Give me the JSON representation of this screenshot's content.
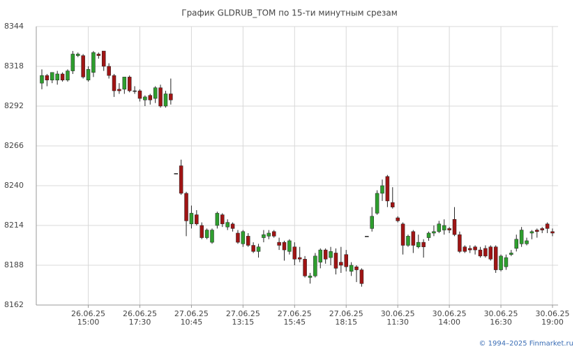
{
  "chart_data": {
    "type": "candlestick",
    "title": "График GLDRUB_TOM по 15-ти минутным срезам",
    "footer": "© 1994–2025 Finmarket.ru",
    "categories": [
      null,
      null,
      null,
      null,
      null,
      null,
      null,
      null,
      null,
      [
        "26.06.25",
        "15:00"
      ],
      null,
      null,
      null,
      null,
      null,
      null,
      null,
      null,
      null,
      [
        "26.06.25",
        "17:30"
      ],
      null,
      null,
      null,
      null,
      null,
      null,
      null,
      null,
      null,
      [
        "27.06.25",
        "10:45"
      ],
      null,
      null,
      null,
      null,
      null,
      null,
      null,
      null,
      null,
      [
        "27.06.25",
        "13:15"
      ],
      null,
      null,
      null,
      null,
      null,
      null,
      null,
      null,
      null,
      [
        "27.06.25",
        "15:45"
      ],
      null,
      null,
      null,
      null,
      null,
      null,
      null,
      null,
      null,
      [
        "27.06.25",
        "18:15"
      ],
      null,
      null,
      null,
      null,
      null,
      null,
      null,
      null,
      null,
      [
        "30.06.25",
        "11:30"
      ],
      null,
      null,
      null,
      null,
      null,
      null,
      null,
      null,
      null,
      [
        "30.06.25",
        "14:00"
      ],
      null,
      null,
      null,
      null,
      null,
      null,
      null,
      null,
      null,
      [
        "30.06.25",
        "16:30"
      ],
      null,
      null,
      null,
      null,
      null,
      null,
      null,
      null,
      null,
      [
        "30.06.25",
        "19:00"
      ]
    ],
    "open": [
      8307,
      8312,
      8309,
      8309,
      8313,
      8309,
      8315,
      8325,
      8325,
      8309,
      8314,
      8326,
      8328,
      8318,
      8312,
      8303,
      8303,
      8311,
      8302,
      8302,
      8296,
      8299,
      8297,
      8304,
      8292,
      8300,
      8248,
      8253,
      8235,
      8215,
      8221,
      8214,
      8206,
      8203,
      8214,
      8221,
      8213,
      8215,
      8209,
      8202,
      8207,
      8201,
      8197,
      8206,
      8207,
      8210,
      8203,
      8203,
      8197,
      8200,
      8193,
      8192,
      8180,
      8181,
      8190,
      8198,
      8193,
      8196,
      8190,
      8195,
      8184,
      8187,
      8185,
      8207,
      8212,
      8222,
      8235,
      8246,
      8229,
      8219,
      8215,
      8201,
      8210,
      8200,
      8203,
      8206,
      8209,
      8210,
      8211,
      8212,
      8218,
      8208,
      8200,
      8199,
      8200,
      8198,
      8199,
      8200,
      8200,
      8185,
      8187,
      8195,
      8199,
      8202,
      8202,
      8209,
      8211,
      8212,
      8215,
      8210
    ],
    "high": [
      8316,
      8313,
      8314,
      8315,
      8314,
      8316,
      8328,
      8327,
      8326,
      8318,
      8328,
      8327,
      8328,
      8320,
      8313,
      8307,
      8311,
      8312,
      8305,
      8303,
      8299,
      8300,
      8305,
      8306,
      8302,
      8310,
      8248,
      8257,
      8236,
      8227,
      8224,
      8216,
      8212,
      8212,
      8223,
      8222,
      8218,
      8216,
      8211,
      8211,
      8209,
      8203,
      8202,
      8211,
      8211,
      8211,
      8206,
      8204,
      8205,
      8203,
      8200,
      8194,
      8183,
      8196,
      8199,
      8199,
      8200,
      8199,
      8200,
      8198,
      8190,
      8188,
      8186,
      8207,
      8226,
      8237,
      8244,
      8247,
      8239,
      8220,
      8216,
      8208,
      8211,
      8208,
      8205,
      8210,
      8214,
      8217,
      8218,
      8213,
      8226,
      8210,
      8201,
      8201,
      8201,
      8200,
      8201,
      8201,
      8201,
      8195,
      8195,
      8198,
      8208,
      8213,
      8206,
      8211,
      8212,
      8213,
      8216,
      8212
    ],
    "low": [
      8303,
      8305,
      8307,
      8306,
      8308,
      8308,
      8313,
      8324,
      8310,
      8308,
      8311,
      8323,
      8315,
      8310,
      8298,
      8300,
      8300,
      8301,
      8300,
      8295,
      8292,
      8293,
      8294,
      8291,
      8291,
      8293,
      8248,
      8234,
      8207,
      8212,
      8214,
      8205,
      8205,
      8202,
      8212,
      8213,
      8211,
      8210,
      8202,
      8200,
      8200,
      8196,
      8193,
      8203,
      8205,
      8206,
      8198,
      8191,
      8195,
      8188,
      8190,
      8180,
      8176,
      8180,
      8186,
      8189,
      8188,
      8182,
      8183,
      8184,
      8181,
      8177,
      8174,
      8207,
      8210,
      8221,
      8230,
      8226,
      8225,
      8216,
      8195,
      8200,
      8196,
      8199,
      8193,
      8204,
      8207,
      8209,
      8208,
      8209,
      8207,
      8196,
      8196,
      8196,
      8195,
      8193,
      8193,
      8191,
      8183,
      8184,
      8185,
      8194,
      8197,
      8200,
      8201,
      8205,
      8206,
      8209,
      8209,
      8207
    ],
    "close": [
      8312,
      8309,
      8314,
      8313,
      8309,
      8315,
      8326,
      8326,
      8311,
      8316,
      8327,
      8325,
      8318,
      8312,
      8302,
      8302,
      8311,
      8302,
      8302,
      8297,
      8298,
      8296,
      8304,
      8292,
      8300,
      8296,
      8248,
      8235,
      8217,
      8222,
      8215,
      8206,
      8211,
      8211,
      8222,
      8215,
      8216,
      8212,
      8203,
      8210,
      8201,
      8197,
      8200,
      8208,
      8209,
      8207,
      8201,
      8198,
      8204,
      8192,
      8192,
      8181,
      8181,
      8194,
      8198,
      8192,
      8197,
      8186,
      8188,
      8187,
      8188,
      8185,
      8176,
      8207,
      8220,
      8235,
      8240,
      8230,
      8226,
      8217,
      8201,
      8207,
      8201,
      8203,
      8200,
      8209,
      8210,
      8215,
      8214,
      8211,
      8208,
      8197,
      8197,
      8198,
      8198,
      8194,
      8194,
      8192,
      8185,
      8194,
      8193,
      8196,
      8205,
      8211,
      8204,
      8210,
      8210,
      8211,
      8212,
      8209
    ],
    "up_color": "#2e9e2e",
    "down_color": "#a01414",
    "ylim": [
      8162,
      8344
    ],
    "yticks": [
      8162,
      8188,
      8214,
      8240,
      8266,
      8292,
      8318,
      8344
    ],
    "grid": true
  }
}
